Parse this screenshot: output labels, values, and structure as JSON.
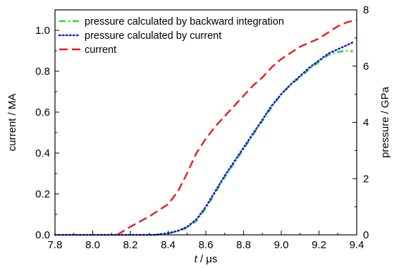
{
  "chart_data": {
    "type": "line",
    "title": "",
    "xlabel_italic": "t",
    "xlabel_unit": " / μs",
    "ylabel_left": "current / MA",
    "ylabel_right": "pressure / GPa",
    "xlim": [
      7.8,
      9.4
    ],
    "ylim_left": [
      0,
      1.1
    ],
    "ylim_right": [
      0,
      8
    ],
    "x_ticks": [
      "7.8",
      "8.0",
      "8.2",
      "8.4",
      "8.6",
      "8.8",
      "9.0",
      "9.2",
      "9.4"
    ],
    "y_left_ticks": [
      "0.0",
      "0.2",
      "0.4",
      "0.6",
      "0.8",
      "1.0"
    ],
    "y_right_ticks": [
      "0",
      "2",
      "4",
      "6",
      "8"
    ],
    "legend_position": "top-left",
    "grid": false,
    "series": [
      {
        "name": "pressure calculated by backward integration",
        "axis": "right",
        "color": "#22dd22",
        "dash": "dash-dot",
        "x": [
          8.33,
          8.4,
          8.45,
          8.5,
          8.55,
          8.6,
          8.65,
          8.7,
          8.75,
          8.8,
          8.85,
          8.9,
          8.95,
          9.0,
          9.05,
          9.1,
          9.15,
          9.2,
          9.25,
          9.3,
          9.35,
          9.38
        ],
        "y": [
          0.0,
          0.05,
          0.12,
          0.25,
          0.5,
          0.95,
          1.5,
          2.05,
          2.55,
          3.05,
          3.55,
          4.05,
          4.55,
          5.0,
          5.35,
          5.6,
          5.9,
          6.15,
          6.4,
          6.5,
          6.55,
          6.52
        ]
      },
      {
        "name": "pressure calculated by current",
        "axis": "right",
        "color": "#1a1aee",
        "dash": "dotted",
        "x": [
          7.8,
          8.0,
          8.2,
          8.33,
          8.4,
          8.45,
          8.5,
          8.55,
          8.6,
          8.65,
          8.7,
          8.75,
          8.8,
          8.85,
          8.9,
          8.95,
          9.0,
          9.05,
          9.1,
          9.15,
          9.2,
          9.25,
          9.3,
          9.35,
          9.38
        ],
        "y": [
          0.0,
          0.0,
          0.0,
          0.0,
          0.06,
          0.14,
          0.28,
          0.55,
          1.0,
          1.55,
          2.1,
          2.6,
          3.1,
          3.6,
          4.1,
          4.6,
          5.0,
          5.35,
          5.65,
          5.95,
          6.2,
          6.45,
          6.6,
          6.75,
          6.85
        ]
      },
      {
        "name": "current",
        "axis": "left",
        "color": "#ee1a1a",
        "dash": "dashed",
        "x": [
          8.13,
          8.2,
          8.3,
          8.4,
          8.45,
          8.5,
          8.55,
          8.6,
          8.65,
          8.7,
          8.75,
          8.8,
          8.85,
          8.9,
          8.95,
          9.0,
          9.05,
          9.1,
          9.15,
          9.2,
          9.25,
          9.3,
          9.35,
          9.4
        ],
        "y": [
          0.0,
          0.04,
          0.09,
          0.15,
          0.21,
          0.3,
          0.4,
          0.47,
          0.53,
          0.58,
          0.63,
          0.68,
          0.73,
          0.77,
          0.82,
          0.86,
          0.89,
          0.92,
          0.94,
          0.96,
          0.99,
          1.02,
          1.04,
          1.05
        ]
      }
    ]
  }
}
